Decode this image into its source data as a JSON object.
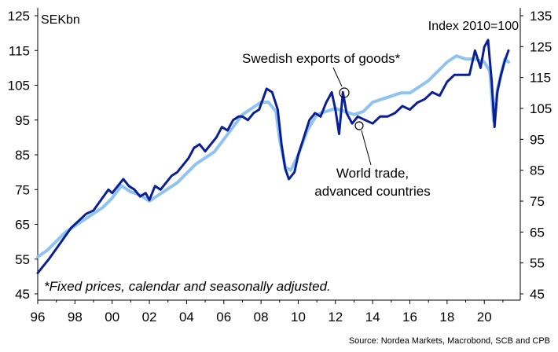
{
  "chart_data": {
    "type": "line",
    "left_axis": {
      "unit_label": "SEKbn",
      "ticks": [
        "125",
        "115",
        "105",
        "95",
        "85",
        "75",
        "65",
        "55",
        "45"
      ],
      "ylim": [
        45,
        125
      ]
    },
    "right_axis": {
      "unit_label": "Index 2010=100",
      "ticks": [
        "135",
        "125",
        "115",
        "105",
        "95",
        "85",
        "75",
        "65",
        "55",
        "45"
      ],
      "ylim": [
        45,
        135
      ]
    },
    "x_axis": {
      "ticks": [
        "96",
        "98",
        "00",
        "02",
        "04",
        "06",
        "08",
        "10",
        "12",
        "14",
        "16",
        "18",
        "20"
      ],
      "xlim": [
        1996,
        2021.3
      ]
    },
    "annotations": {
      "exports": "Swedish exports of goods*",
      "world_line1": "World trade,",
      "world_line2": "advanced countries"
    },
    "footnote": "*Fixed prices, calendar and seasonally adjusted.",
    "source": "Source: Nordea Markets, Macrobond, SCB and CPB",
    "colors": {
      "exports": "#0a1f96",
      "world": "#8ec3f2"
    },
    "series": [
      {
        "key": "exports",
        "axis": "left",
        "points": [
          [
            1996.0,
            51
          ],
          [
            1996.3,
            53
          ],
          [
            1996.6,
            55
          ],
          [
            1997.0,
            58
          ],
          [
            1997.4,
            61
          ],
          [
            1997.8,
            64
          ],
          [
            1998.2,
            66
          ],
          [
            1998.6,
            68
          ],
          [
            1999.0,
            69
          ],
          [
            1999.4,
            72
          ],
          [
            1999.8,
            75
          ],
          [
            2000.0,
            74
          ],
          [
            2000.3,
            76
          ],
          [
            2000.6,
            78
          ],
          [
            2000.9,
            76
          ],
          [
            2001.2,
            75
          ],
          [
            2001.5,
            73
          ],
          [
            2001.8,
            74
          ],
          [
            2002.0,
            72
          ],
          [
            2002.3,
            76
          ],
          [
            2002.6,
            75
          ],
          [
            2002.9,
            77
          ],
          [
            2003.2,
            79
          ],
          [
            2003.5,
            80
          ],
          [
            2003.8,
            82
          ],
          [
            2004.1,
            84
          ],
          [
            2004.4,
            87
          ],
          [
            2004.7,
            88
          ],
          [
            2005.0,
            86
          ],
          [
            2005.3,
            88
          ],
          [
            2005.6,
            90
          ],
          [
            2005.9,
            93
          ],
          [
            2006.2,
            92
          ],
          [
            2006.5,
            95
          ],
          [
            2006.8,
            96
          ],
          [
            2007.0,
            96
          ],
          [
            2007.3,
            95
          ],
          [
            2007.6,
            97
          ],
          [
            2007.9,
            98
          ],
          [
            2008.1,
            101
          ],
          [
            2008.3,
            104
          ],
          [
            2008.6,
            103
          ],
          [
            2008.9,
            98
          ],
          [
            2009.1,
            88
          ],
          [
            2009.3,
            81
          ],
          [
            2009.5,
            78
          ],
          [
            2009.8,
            80
          ],
          [
            2010.0,
            85
          ],
          [
            2010.3,
            90
          ],
          [
            2010.6,
            95
          ],
          [
            2010.9,
            97
          ],
          [
            2011.2,
            96
          ],
          [
            2011.5,
            100
          ],
          [
            2011.8,
            103
          ],
          [
            2012.0,
            98
          ],
          [
            2012.2,
            91
          ],
          [
            2012.4,
            103
          ],
          [
            2012.6,
            97
          ],
          [
            2012.9,
            94
          ],
          [
            2013.2,
            96
          ],
          [
            2013.6,
            95
          ],
          [
            2014.0,
            94
          ],
          [
            2014.4,
            96
          ],
          [
            2014.8,
            96
          ],
          [
            2015.2,
            97
          ],
          [
            2015.6,
            99
          ],
          [
            2016.0,
            98
          ],
          [
            2016.4,
            100
          ],
          [
            2016.8,
            101
          ],
          [
            2017.2,
            103
          ],
          [
            2017.6,
            102
          ],
          [
            2018.0,
            106
          ],
          [
            2018.4,
            108
          ],
          [
            2018.8,
            108
          ],
          [
            2019.2,
            108
          ],
          [
            2019.5,
            115
          ],
          [
            2019.8,
            110
          ],
          [
            2020.0,
            116
          ],
          [
            2020.2,
            118
          ],
          [
            2020.4,
            106
          ],
          [
            2020.55,
            93
          ],
          [
            2020.7,
            103
          ],
          [
            2020.9,
            108
          ],
          [
            2021.1,
            112
          ],
          [
            2021.3,
            115
          ]
        ]
      },
      {
        "key": "world",
        "axis": "right",
        "points": [
          [
            1996.0,
            57
          ],
          [
            1996.5,
            59
          ],
          [
            1997.0,
            62
          ],
          [
            1997.5,
            65
          ],
          [
            1998.0,
            67
          ],
          [
            1998.5,
            69
          ],
          [
            1999.0,
            71
          ],
          [
            1999.5,
            73
          ],
          [
            2000.0,
            76
          ],
          [
            2000.5,
            80
          ],
          [
            2001.0,
            78
          ],
          [
            2001.5,
            77
          ],
          [
            2002.0,
            75
          ],
          [
            2002.5,
            77
          ],
          [
            2003.0,
            79
          ],
          [
            2003.5,
            81
          ],
          [
            2004.0,
            84
          ],
          [
            2004.5,
            87
          ],
          [
            2005.0,
            89
          ],
          [
            2005.5,
            91
          ],
          [
            2006.0,
            95
          ],
          [
            2006.5,
            99
          ],
          [
            2007.0,
            103
          ],
          [
            2007.5,
            105
          ],
          [
            2008.0,
            107
          ],
          [
            2008.4,
            107
          ],
          [
            2008.8,
            104
          ],
          [
            2009.0,
            95
          ],
          [
            2009.3,
            86
          ],
          [
            2009.6,
            85
          ],
          [
            2010.0,
            90
          ],
          [
            2010.5,
            98
          ],
          [
            2011.0,
            103
          ],
          [
            2011.5,
            104
          ],
          [
            2012.0,
            105
          ],
          [
            2012.5,
            104
          ],
          [
            2013.0,
            103
          ],
          [
            2013.5,
            104
          ],
          [
            2014.0,
            107
          ],
          [
            2014.5,
            108
          ],
          [
            2015.0,
            109
          ],
          [
            2015.5,
            110
          ],
          [
            2016.0,
            110
          ],
          [
            2016.5,
            112
          ],
          [
            2017.0,
            114
          ],
          [
            2017.5,
            117
          ],
          [
            2018.0,
            120
          ],
          [
            2018.5,
            122
          ],
          [
            2019.0,
            121
          ],
          [
            2019.5,
            121
          ],
          [
            2020.0,
            120
          ],
          [
            2020.3,
            117
          ],
          [
            2020.5,
            101
          ],
          [
            2020.7,
            111
          ],
          [
            2020.9,
            116
          ],
          [
            2021.1,
            121
          ],
          [
            2021.3,
            120
          ]
        ]
      }
    ]
  }
}
